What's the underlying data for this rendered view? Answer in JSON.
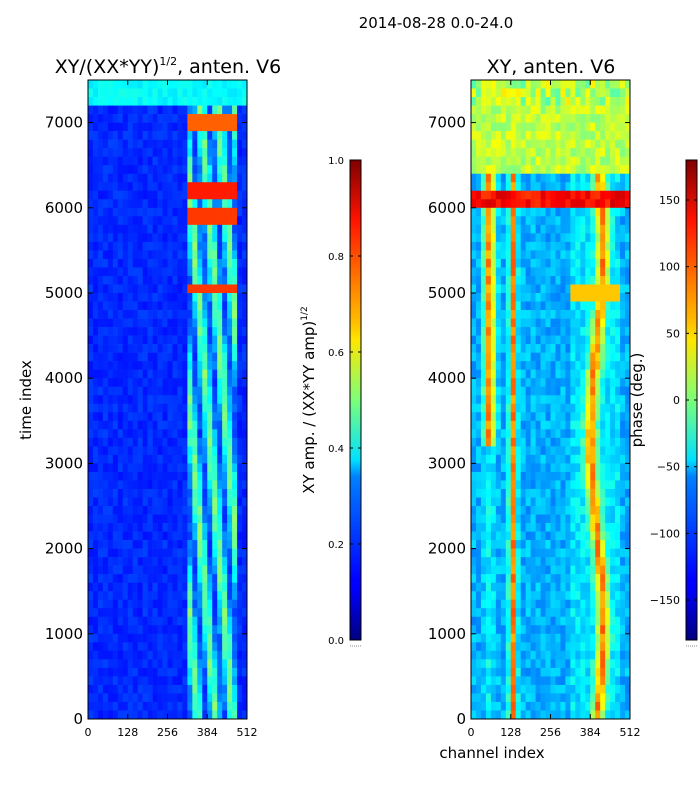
{
  "figure": {
    "suptitle": "2014-08-28 0.0-24.0"
  },
  "chart_data": [
    {
      "type": "heatmap",
      "title_main": "XY/(XX*YY)",
      "title_exp": "1/2",
      "title_rest": ", anten. V6",
      "xlabel": "",
      "ylabel": "time index",
      "xlim": [
        0,
        512
      ],
      "ylim": [
        0,
        7500
      ],
      "xticks": [
        "0",
        "128",
        "256",
        "384",
        "512"
      ],
      "yticks": [
        "0",
        "1000",
        "2000",
        "3000",
        "4000",
        "5000",
        "6000",
        "7000"
      ],
      "xtick_values": [
        0,
        128,
        256,
        384,
        512
      ],
      "ytick_values": [
        0,
        1000,
        2000,
        3000,
        4000,
        5000,
        6000,
        7000
      ],
      "colormap": "jet",
      "colorbar": {
        "label_main": "XY amp. / (XX*YY amp)",
        "label_exp": "1/2",
        "range": [
          0.0,
          1.0
        ],
        "ticks": [
          "0.0",
          "0.2",
          "0.4",
          "0.6",
          "0.8",
          "1.0"
        ],
        "tick_values": [
          0.0,
          0.2,
          0.4,
          0.6,
          0.8,
          1.0
        ]
      }
    },
    {
      "type": "heatmap",
      "title": "XY, anten. V6",
      "xlabel": "channel index",
      "ylabel": "",
      "xlim": [
        0,
        512
      ],
      "ylim": [
        0,
        7500
      ],
      "xticks": [
        "0",
        "128",
        "256",
        "384",
        "512"
      ],
      "yticks": [
        "0",
        "1000",
        "2000",
        "3000",
        "4000",
        "5000",
        "6000",
        "7000"
      ],
      "xtick_values": [
        0,
        128,
        256,
        384,
        512
      ],
      "ytick_values": [
        0,
        1000,
        2000,
        3000,
        4000,
        5000,
        6000,
        7000
      ],
      "colormap": "jet",
      "colorbar": {
        "label": "phase (deg.)",
        "range": [
          -180,
          180
        ],
        "ticks": [
          "−150",
          "−100",
          "−50",
          "0",
          "50",
          "100",
          "150"
        ],
        "tick_values": [
          -150,
          -100,
          -50,
          0,
          50,
          100,
          150
        ]
      }
    }
  ]
}
